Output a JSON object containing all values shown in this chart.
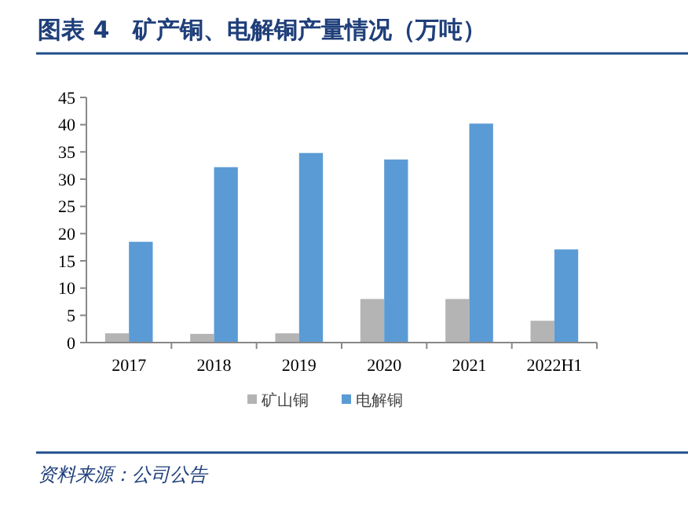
{
  "chart_data": {
    "type": "bar",
    "title": "图表 4　矿产铜、电解铜产量情况（万吨）",
    "categories": [
      "2017",
      "2018",
      "2019",
      "2020",
      "2021",
      "2022H1"
    ],
    "series": [
      {
        "name": "矿山铜",
        "color": "#b4b4b4",
        "values": [
          1.7,
          1.6,
          1.7,
          8.0,
          8.0,
          4.0
        ]
      },
      {
        "name": "电解铜",
        "color": "#5b9bd5",
        "values": [
          18.5,
          32.2,
          34.8,
          33.6,
          40.2,
          17.1
        ]
      }
    ],
    "ylim": [
      0,
      45
    ],
    "yticks": [
      0,
      5,
      10,
      15,
      20,
      25,
      30,
      35,
      40,
      45
    ],
    "grid": false,
    "legend": "bottom",
    "annotations": [
      "资料来源：公司公告"
    ]
  }
}
